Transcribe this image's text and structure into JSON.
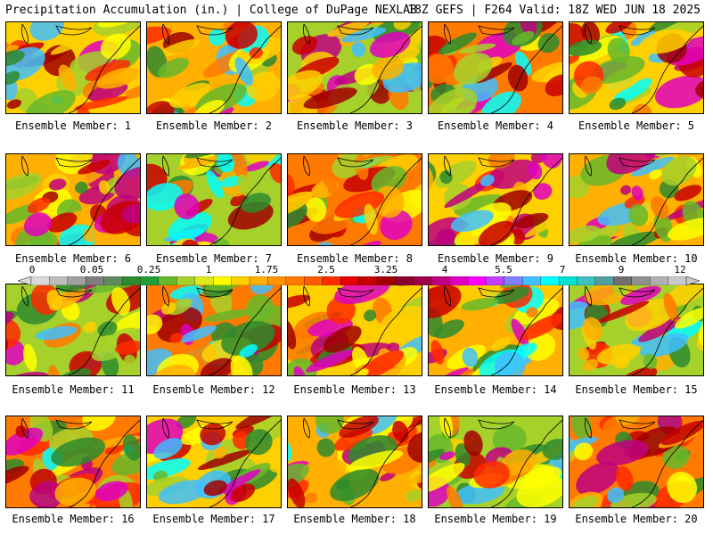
{
  "header": {
    "left": "Precipitation Accumulation (in.) | College of DuPage NEXLAB",
    "right": "18Z GEFS | F264 Valid: 18Z WED JUN 18 2025"
  },
  "panels": [
    {
      "label": "Ensemble Member: 1"
    },
    {
      "label": "Ensemble Member: 2"
    },
    {
      "label": "Ensemble Member: 3"
    },
    {
      "label": "Ensemble Member: 4"
    },
    {
      "label": "Ensemble Member: 5"
    },
    {
      "label": "Ensemble Member: 6"
    },
    {
      "label": "Ensemble Member: 7"
    },
    {
      "label": "Ensemble Member: 8"
    },
    {
      "label": "Ensemble Member: 9"
    },
    {
      "label": "Ensemble Member: 10"
    },
    {
      "label": "Ensemble Member: 11"
    },
    {
      "label": "Ensemble Member: 12"
    },
    {
      "label": "Ensemble Member: 13"
    },
    {
      "label": "Ensemble Member: 14"
    },
    {
      "label": "Ensemble Member: 15"
    },
    {
      "label": "Ensemble Member: 16"
    },
    {
      "label": "Ensemble Member: 17"
    },
    {
      "label": "Ensemble Member: 18"
    },
    {
      "label": "Ensemble Member: 19"
    },
    {
      "label": "Ensemble Member: 20"
    }
  ],
  "colorbar": {
    "ticks": [
      "0",
      "0.05",
      "0.25",
      "1",
      "1.75",
      "2.5",
      "3.25",
      "4",
      "5.5",
      "7",
      "9",
      "12"
    ],
    "colors": [
      "#d9d9d9",
      "#bdbdbd",
      "#a0a0a0",
      "#7f7f7f",
      "#5e8c5e",
      "#2e8b2e",
      "#1f9e3a",
      "#66b82a",
      "#a6d12a",
      "#dfe81a",
      "#ffff00",
      "#ffd000",
      "#ffb000",
      "#ff9400",
      "#ff7a00",
      "#ff5a00",
      "#ff2a00",
      "#e60000",
      "#c80000",
      "#a00000",
      "#8b0030",
      "#a0004a",
      "#c00080",
      "#e000c0",
      "#ff00ff",
      "#c040ff",
      "#8080ff",
      "#40c0ff",
      "#00ffff",
      "#00e0d0",
      "#40c0c0",
      "#50a0a0",
      "#707070",
      "#909090",
      "#b0b0b0",
      "#c8c8c8"
    ]
  }
}
